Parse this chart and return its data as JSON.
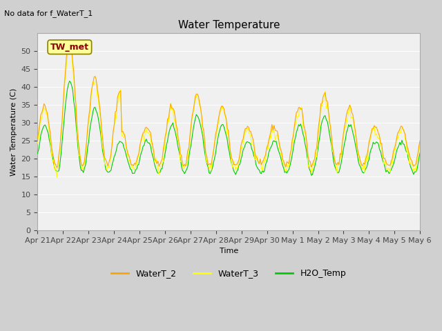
{
  "title": "Water Temperature",
  "subtitle": "No data for f_WaterT_1",
  "xlabel": "Time",
  "ylabel": "Water Temperature (C)",
  "ylim": [
    0,
    55
  ],
  "yticks": [
    0,
    5,
    10,
    15,
    20,
    25,
    30,
    35,
    40,
    45,
    50
  ],
  "bg_color": "#e8e8e8",
  "plot_bg": "#f0f0f0",
  "legend_labels": [
    "WaterT_2",
    "WaterT_3",
    "H2O_Temp"
  ],
  "legend_colors": [
    "#FFA500",
    "#FFFF00",
    "#00CC00"
  ],
  "line_colors": [
    "#FFA500",
    "#FFFF00",
    "#00CC00"
  ],
  "tw_met_box_bg": "#FFFF99",
  "tw_met_box_edge": "#8B8B00",
  "tw_met_text_color": "#8B0000",
  "n_points": 360,
  "date_start": "Apr 21",
  "date_end": "May 6",
  "tick_labels": [
    "Apr 21",
    "Apr 22",
    "Apr 23",
    "Apr 24",
    "Apr 25",
    "Apr 26",
    "Apr 27",
    "Apr 28",
    "Apr 29",
    "Apr 30",
    "May 1",
    "May 2",
    "May 3",
    "May 4",
    "May 5",
    "May 6"
  ]
}
